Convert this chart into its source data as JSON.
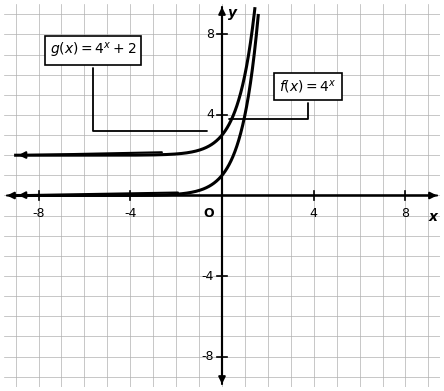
{
  "xlim": [
    -9.5,
    9.5
  ],
  "ylim": [
    -9.5,
    9.5
  ],
  "xticks": [
    -8,
    -4,
    4,
    8
  ],
  "yticks": [
    -8,
    -4,
    4,
    8
  ],
  "xtick_labels": [
    "-8",
    "-4",
    "4",
    "8"
  ],
  "ytick_labels": [
    "-8",
    "-4",
    "4",
    "8"
  ],
  "xlabel": "x",
  "ylabel": "y",
  "grid_color": "#b0b0b0",
  "axis_color": "#000000",
  "curve_color": "#000000",
  "background_color": "#ffffff"
}
